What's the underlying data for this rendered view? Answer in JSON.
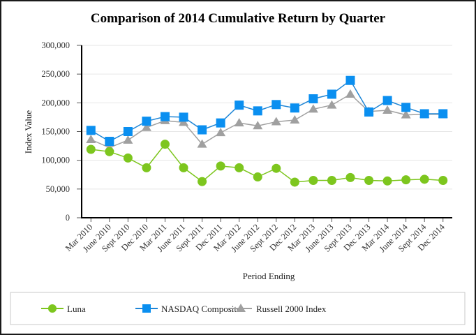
{
  "chart_data": {
    "type": "line",
    "title": "Comparison of 2014 Cumulative Return by Quarter",
    "xlabel": "Period Ending",
    "ylabel": "Index Value",
    "ylim": [
      0,
      300000
    ],
    "yticks": [
      0,
      50000,
      100000,
      150000,
      200000,
      250000,
      300000
    ],
    "ytick_labels": [
      "0",
      "50,000",
      "100,000",
      "150,000",
      "200,000",
      "250,000",
      "300,000"
    ],
    "grid": true,
    "legend_position": "bottom",
    "categories": [
      "Mar 2010",
      "June 2010",
      "Sept 2010",
      "Dec 2010",
      "Mar 2011",
      "June 2011",
      "Sept 2011",
      "Dec 2011",
      "Mar 2012",
      "June 2012",
      "Sept 2012",
      "Dec 2012",
      "Mar 2013",
      "June 2013",
      "Sept 2013",
      "Dec 2013",
      "Mar 2014",
      "June 2014",
      "Sept 2014",
      "Dec 2014"
    ],
    "series": [
      {
        "name": "Luna",
        "color": "#7dc61e",
        "marker": "circle",
        "values": [
          119000,
          115000,
          104000,
          87000,
          128000,
          87000,
          63000,
          90000,
          87000,
          71000,
          86000,
          62000,
          65000,
          65000,
          70000,
          65000,
          64000,
          66000,
          67000,
          65000
        ]
      },
      {
        "name": "NASDAQ Composite",
        "color": "#0a8ff0",
        "line_color": "#1f86d6",
        "marker": "square",
        "values": [
          152000,
          133000,
          150000,
          168000,
          176000,
          175000,
          153000,
          165000,
          196000,
          186000,
          197000,
          191000,
          207000,
          215000,
          239000,
          184000,
          204000,
          192000,
          181000,
          181000
        ]
      },
      {
        "name": "Russell 2000 Index",
        "color": "#a0a0a0",
        "marker": "triangle",
        "values": [
          136000,
          122000,
          135000,
          157000,
          169000,
          166000,
          128000,
          148000,
          165000,
          160000,
          167000,
          170000,
          189000,
          196000,
          215000,
          185000,
          187000,
          179000,
          180000,
          180000
        ]
      }
    ]
  }
}
